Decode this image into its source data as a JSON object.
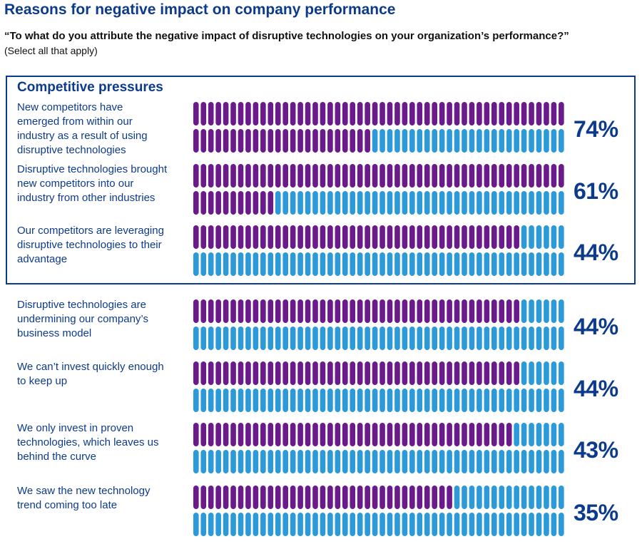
{
  "title": "Reasons for negative impact on company performance",
  "question": "“To what do you attribute the negative impact of disruptive technologies on your organization’s performance?”",
  "instruction": "(Select all that apply)",
  "group_title": "Competitive pressures",
  "colors": {
    "filled": "#6a1a8a",
    "empty": "#2c9ad8",
    "text": "#0d3b8c"
  },
  "chart_data": {
    "type": "bar",
    "units_per_row": 50,
    "categories": [
      "New competitors have emerged from within our industry as a result of using disruptive technologies",
      "Disruptive technologies brought new competitors into our industry from other industries",
      "Our competitors are leveraging disruptive technologies to their advantage",
      "Disruptive technologies are undermining our company’s business model",
      "We can’t invest quickly enough to keep up",
      "We only invest in proven technologies, which leaves us behind the curve",
      "We saw the new technology trend coming too late"
    ],
    "values": [
      74,
      61,
      44,
      44,
      44,
      43,
      35
    ],
    "value_labels": [
      "74%",
      "61%",
      "44%",
      "44%",
      "44%",
      "43%",
      "35%"
    ],
    "label_lines": [
      [
        "New competitors have",
        "emerged from within our",
        "industry as a result of using",
        "disruptive technologies"
      ],
      [
        "Disruptive technologies brought",
        "new competitors into our",
        "industry from other industries"
      ],
      [
        "Our competitors are leveraging",
        "disruptive technologies to their",
        "advantage"
      ],
      [
        "Disruptive technologies are",
        "undermining our company’s",
        "business model"
      ],
      [
        "We can’t invest quickly enough",
        "to keep up"
      ],
      [
        "We only invest in proven",
        "technologies, which leaves us",
        "behind the curve"
      ],
      [
        "We saw the new technology",
        "trend coming too late"
      ]
    ],
    "groups": [
      {
        "name": "Competitive pressures",
        "items": [
          0,
          1,
          2
        ]
      }
    ],
    "ylim": [
      0,
      100
    ]
  }
}
